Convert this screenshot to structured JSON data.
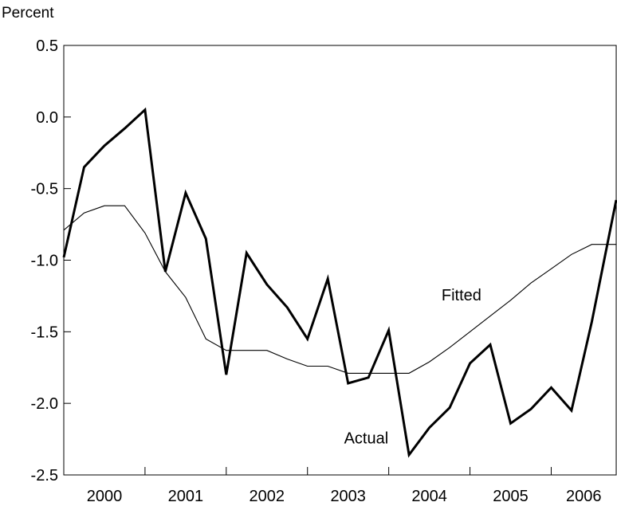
{
  "chart_data": {
    "type": "line",
    "title": "",
    "xlabel": "",
    "ylabel": "Percent",
    "ylim": [
      -2.5,
      0.5
    ],
    "yticks": [
      "0.5",
      "0.0",
      "-0.5",
      "-1.0",
      "-1.5",
      "-2.0",
      "-2.5"
    ],
    "ytick_values": [
      0.5,
      0.0,
      -0.5,
      -1.0,
      -1.5,
      -2.0,
      -2.5
    ],
    "xlim": [
      2000.0,
      2006.8
    ],
    "xtick_labels": [
      "2000",
      "2001",
      "2002",
      "2003",
      "2004",
      "2005",
      "2006"
    ],
    "xtick_years": [
      2000,
      2001,
      2002,
      2003,
      2004,
      2005,
      2006
    ],
    "grid": false,
    "legend": "none",
    "series": [
      {
        "name": "Actual",
        "label_x": 2003.45,
        "label_y": -2.28,
        "points": [
          [
            2000.0,
            -0.98
          ],
          [
            2000.25,
            -0.35
          ],
          [
            2000.5,
            -0.2
          ],
          [
            2000.75,
            -0.08
          ],
          [
            2001.0,
            0.05
          ],
          [
            2001.25,
            -1.08
          ],
          [
            2001.5,
            -0.53
          ],
          [
            2001.75,
            -0.85
          ],
          [
            2002.0,
            -1.8
          ],
          [
            2002.25,
            -0.95
          ],
          [
            2002.5,
            -1.17
          ],
          [
            2002.75,
            -1.33
          ],
          [
            2003.0,
            -1.55
          ],
          [
            2003.25,
            -1.13
          ],
          [
            2003.5,
            -1.86
          ],
          [
            2003.75,
            -1.82
          ],
          [
            2004.0,
            -1.49
          ],
          [
            2004.25,
            -2.36
          ],
          [
            2004.5,
            -2.17
          ],
          [
            2004.75,
            -2.03
          ],
          [
            2005.0,
            -1.72
          ],
          [
            2005.25,
            -1.59
          ],
          [
            2005.5,
            -2.14
          ],
          [
            2005.75,
            -2.04
          ],
          [
            2006.0,
            -1.89
          ],
          [
            2006.25,
            -2.05
          ],
          [
            2006.5,
            -1.43
          ],
          [
            2006.8,
            -0.58
          ]
        ]
      },
      {
        "name": "Fitted",
        "label_x": 2004.65,
        "label_y": -1.28,
        "points": [
          [
            2000.0,
            -0.79
          ],
          [
            2000.25,
            -0.67
          ],
          [
            2000.5,
            -0.62
          ],
          [
            2000.75,
            -0.62
          ],
          [
            2001.0,
            -0.81
          ],
          [
            2001.25,
            -1.08
          ],
          [
            2001.5,
            -1.26
          ],
          [
            2001.75,
            -1.55
          ],
          [
            2002.0,
            -1.63
          ],
          [
            2002.25,
            -1.63
          ],
          [
            2002.5,
            -1.63
          ],
          [
            2002.75,
            -1.69
          ],
          [
            2003.0,
            -1.74
          ],
          [
            2003.25,
            -1.74
          ],
          [
            2003.5,
            -1.79
          ],
          [
            2003.75,
            -1.79
          ],
          [
            2004.0,
            -1.79
          ],
          [
            2004.25,
            -1.79
          ],
          [
            2004.5,
            -1.71
          ],
          [
            2004.75,
            -1.61
          ],
          [
            2005.0,
            -1.5
          ],
          [
            2005.25,
            -1.39
          ],
          [
            2005.5,
            -1.28
          ],
          [
            2005.75,
            -1.16
          ],
          [
            2006.0,
            -1.06
          ],
          [
            2006.25,
            -0.96
          ],
          [
            2006.5,
            -0.89
          ],
          [
            2006.8,
            -0.89
          ]
        ]
      }
    ]
  }
}
